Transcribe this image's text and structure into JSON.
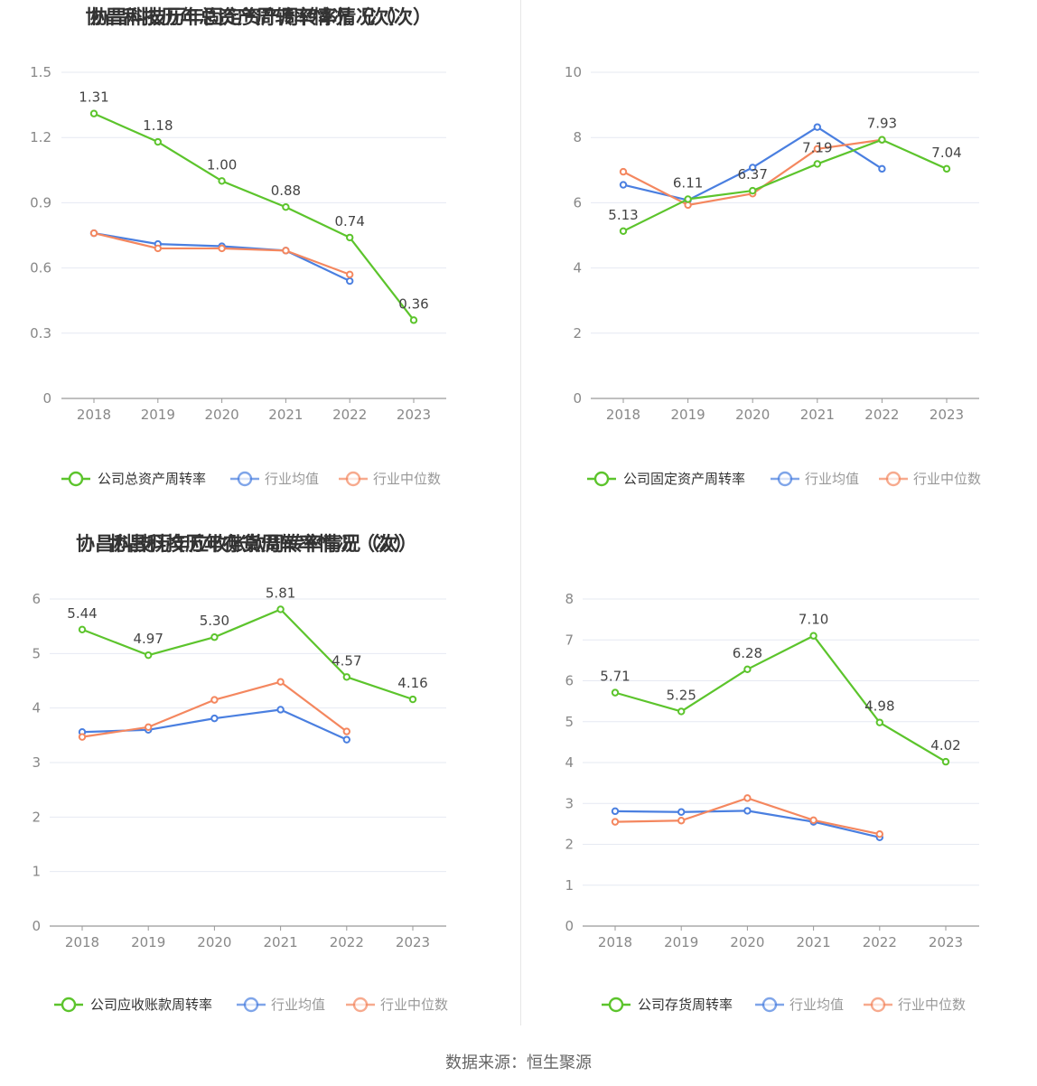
{
  "colors": {
    "company": "#5cc42c",
    "industry_avg": "#4a7fe0",
    "industry_median": "#f4875f",
    "grid": "#e6e9f2",
    "axis": "#999999"
  },
  "source_text": "数据来源：恒生聚源",
  "chart_data": [
    {
      "type": "line",
      "title": "协昌科技历年总资产周转率情况（次）",
      "x": [
        "2018",
        "2019",
        "2020",
        "2021",
        "2022",
        "2023"
      ],
      "yticks": [
        "0",
        "0.3",
        "0.6",
        "0.9",
        "1.2",
        "1.5"
      ],
      "ylim": [
        0,
        1.5
      ],
      "grid": true,
      "legend_position": "bottom",
      "series": [
        {
          "name": "公司总资产周转率",
          "values": [
            1.31,
            1.18,
            1.0,
            0.88,
            0.74,
            0.36
          ],
          "labels": [
            "1.31",
            "1.18",
            "1.00",
            "0.88",
            "0.74",
            "0.36"
          ]
        },
        {
          "name": "行业均值",
          "values": [
            0.76,
            0.71,
            0.7,
            0.68,
            0.54,
            null
          ]
        },
        {
          "name": "行业中位数",
          "values": [
            0.76,
            0.69,
            0.69,
            0.68,
            0.57,
            null
          ]
        }
      ]
    },
    {
      "type": "line",
      "title": "协昌科技历年固定资产周转率情况（次）",
      "x": [
        "2018",
        "2019",
        "2020",
        "2021",
        "2022",
        "2023"
      ],
      "yticks": [
        "0",
        "2",
        "4",
        "6",
        "8",
        "10"
      ],
      "ylim": [
        0,
        10
      ],
      "grid": true,
      "legend_position": "bottom",
      "series": [
        {
          "name": "公司固定资产周转率",
          "values": [
            5.13,
            6.11,
            6.37,
            7.19,
            7.93,
            7.04
          ],
          "labels": [
            "5.13",
            "6.11",
            "6.37",
            "7.19",
            "7.93",
            "7.04"
          ]
        },
        {
          "name": "行业均值",
          "values": [
            6.55,
            6.08,
            7.08,
            8.32,
            7.04,
            null
          ]
        },
        {
          "name": "行业中位数",
          "values": [
            6.95,
            5.93,
            6.28,
            7.65,
            7.93,
            null
          ]
        }
      ]
    },
    {
      "type": "line",
      "title": "协昌科技历年应收账款周转率情况（次）",
      "x": [
        "2018",
        "2019",
        "2020",
        "2021",
        "2022",
        "2023"
      ],
      "yticks": [
        "0",
        "1",
        "2",
        "3",
        "4",
        "5",
        "6"
      ],
      "ylim": [
        0,
        6
      ],
      "grid": true,
      "legend_position": "bottom",
      "series": [
        {
          "name": "公司应收账款周转率",
          "values": [
            5.44,
            4.97,
            5.3,
            5.81,
            4.57,
            4.16
          ],
          "labels": [
            "5.44",
            "4.97",
            "5.30",
            "5.81",
            "4.57",
            "4.16"
          ]
        },
        {
          "name": "行业均值",
          "values": [
            3.56,
            3.6,
            3.81,
            3.97,
            3.42,
            null
          ]
        },
        {
          "name": "行业中位数",
          "values": [
            3.47,
            3.65,
            4.15,
            4.48,
            3.57,
            null
          ]
        }
      ]
    },
    {
      "type": "line",
      "title": "协昌科技历年存货周转率情况（次）",
      "x": [
        "2018",
        "2019",
        "2020",
        "2021",
        "2022",
        "2023"
      ],
      "yticks": [
        "0",
        "1",
        "2",
        "3",
        "4",
        "5",
        "6",
        "7",
        "8"
      ],
      "ylim": [
        0,
        8
      ],
      "grid": true,
      "legend_position": "bottom",
      "series": [
        {
          "name": "公司存货周转率",
          "values": [
            5.71,
            5.25,
            6.28,
            7.1,
            4.98,
            4.02
          ],
          "labels": [
            "5.71",
            "5.25",
            "6.28",
            "7.10",
            "4.98",
            "4.02"
          ]
        },
        {
          "name": "行业均值",
          "values": [
            2.81,
            2.79,
            2.82,
            2.55,
            2.17,
            null
          ]
        },
        {
          "name": "行业中位数",
          "values": [
            2.55,
            2.58,
            3.13,
            2.59,
            2.25,
            null
          ]
        }
      ]
    }
  ]
}
